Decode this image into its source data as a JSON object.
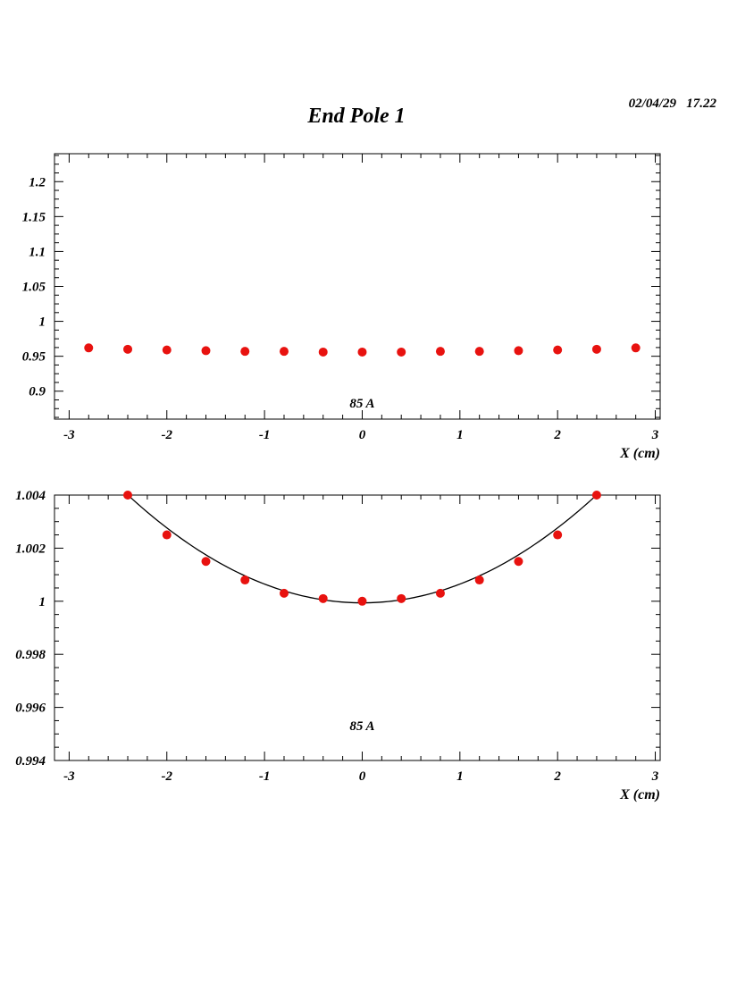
{
  "header": {
    "title": "End Pole 1",
    "datetime": "02/04/29   17.22"
  },
  "colors": {
    "marker": "#e8120f",
    "axis": "#000000",
    "fit": "#000000"
  },
  "chart_data": [
    {
      "type": "scatter",
      "xlabel": "X (cm)",
      "ylabel": "",
      "annotation": "85 A",
      "xlim": [
        -3.15,
        3.05
      ],
      "ylim": [
        0.86,
        1.24
      ],
      "xticks": [
        -3,
        -2,
        -1,
        0,
        1,
        2,
        3
      ],
      "xtick_labels": [
        "-3",
        "-2",
        "-1",
        "0",
        "1",
        "2",
        "3"
      ],
      "yticks": [
        0.9,
        0.95,
        1,
        1.05,
        1.1,
        1.15,
        1.2
      ],
      "ytick_labels": [
        "0.9",
        "0.95",
        "1",
        "1.05",
        "1.1",
        "1.15",
        "1.2"
      ],
      "grid": false,
      "series": [
        {
          "x": [
            -2.8,
            -2.4,
            -2.0,
            -1.6,
            -1.2,
            -0.8,
            -0.4,
            0.0,
            0.4,
            0.8,
            1.2,
            1.6,
            2.0,
            2.4,
            2.8
          ],
          "y": [
            0.962,
            0.96,
            0.959,
            0.958,
            0.957,
            0.957,
            0.956,
            0.956,
            0.956,
            0.957,
            0.957,
            0.958,
            0.959,
            0.96,
            0.962
          ]
        }
      ]
    },
    {
      "type": "scatter",
      "xlabel": "X (cm)",
      "ylabel": "",
      "annotation": "85 A",
      "xlim": [
        -3.15,
        3.05
      ],
      "ylim": [
        0.994,
        1.004
      ],
      "xticks": [
        -3,
        -2,
        -1,
        0,
        1,
        2,
        3
      ],
      "xtick_labels": [
        "-3",
        "-2",
        "-1",
        "0",
        "1",
        "2",
        "3"
      ],
      "yticks": [
        0.994,
        0.996,
        0.998,
        1,
        1.002,
        1.004
      ],
      "ytick_labels": [
        "0.994",
        "0.996",
        "0.998",
        "1",
        "1.002",
        "1.004"
      ],
      "grid": false,
      "series": [
        {
          "x": [
            -2.4,
            -2.0,
            -1.6,
            -1.2,
            -0.8,
            -0.4,
            0.0,
            0.4,
            0.8,
            1.2,
            1.6,
            2.0,
            2.4
          ],
          "y": [
            1.004,
            1.0025,
            1.0015,
            1.0008,
            1.0003,
            1.0001,
            1.0,
            1.0001,
            1.0003,
            1.0008,
            1.0015,
            1.0025,
            1.004
          ]
        }
      ],
      "fit": {
        "type": "parabola",
        "x_range": [
          -2.65,
          2.65
        ],
        "y_min": 0.99994,
        "curvature": 0.000706
      }
    }
  ]
}
